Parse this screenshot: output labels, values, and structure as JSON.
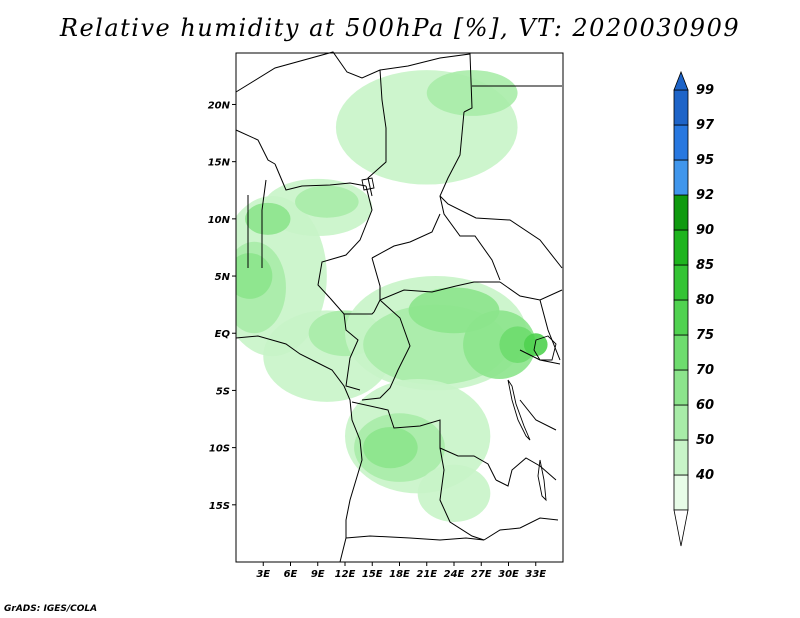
{
  "title": "Relative humidity at 500hPa [%], VT: 2020030909",
  "credit": "GrADS: IGES/COLA",
  "map": {
    "lon_range": [
      0,
      36
    ],
    "lat_range": [
      -20,
      24.5
    ],
    "lon_ticks": [
      {
        "lon": 3,
        "label": "3E"
      },
      {
        "lon": 6,
        "label": "6E"
      },
      {
        "lon": 9,
        "label": "9E"
      },
      {
        "lon": 12,
        "label": "12E"
      },
      {
        "lon": 15,
        "label": "15E"
      },
      {
        "lon": 18,
        "label": "18E"
      },
      {
        "lon": 21,
        "label": "21E"
      },
      {
        "lon": 24,
        "label": "24E"
      },
      {
        "lon": 27,
        "label": "27E"
      },
      {
        "lon": 30,
        "label": "30E"
      },
      {
        "lon": 33,
        "label": "33E"
      }
    ],
    "lat_ticks": [
      {
        "lat": 20,
        "label": "20N"
      },
      {
        "lat": 15,
        "label": "15N"
      },
      {
        "lat": 10,
        "label": "10N"
      },
      {
        "lat": 5,
        "label": "5N"
      },
      {
        "lat": 0,
        "label": "EQ"
      },
      {
        "lat": -5,
        "label": "5S"
      },
      {
        "lat": -10,
        "label": "10S"
      },
      {
        "lat": -15,
        "label": "15S"
      }
    ],
    "land_color": "#ffffff",
    "border_color": "#000000"
  },
  "colorbar": {
    "levels": [
      {
        "label": "40",
        "color": "#e8fce8"
      },
      {
        "label": "50",
        "color": "#c8f4c8"
      },
      {
        "label": "60",
        "color": "#a8eca8"
      },
      {
        "label": "70",
        "color": "#8ce48c"
      },
      {
        "label": "75",
        "color": "#6edc6e"
      },
      {
        "label": "80",
        "color": "#50d250"
      },
      {
        "label": "85",
        "color": "#34c434"
      },
      {
        "label": "90",
        "color": "#1eb41e"
      },
      {
        "label": "92",
        "color": "#0f9a0f"
      },
      {
        "label": "95",
        "color": "#4096ec"
      },
      {
        "label": "97",
        "color": "#2878e0"
      },
      {
        "label": "99",
        "color": "#1e64c8"
      }
    ],
    "low_end_color": "#ffffff",
    "high_end_color": "#1e64c8"
  },
  "humidity_fields": [
    {
      "level": 50,
      "center": [
        4,
        5
      ],
      "radii": [
        6,
        7
      ]
    },
    {
      "level": 60,
      "center": [
        2,
        4
      ],
      "radii": [
        3.5,
        4
      ]
    },
    {
      "level": 70,
      "center": [
        1.5,
        5
      ],
      "radii": [
        2.5,
        2
      ]
    },
    {
      "level": 50,
      "center": [
        9,
        11
      ],
      "radii": [
        6,
        2.5
      ]
    },
    {
      "level": 60,
      "center": [
        10,
        11.5
      ],
      "radii": [
        3.5,
        1.4
      ]
    },
    {
      "level": 70,
      "center": [
        3.5,
        10
      ],
      "radii": [
        2.5,
        1.4
      ]
    },
    {
      "level": 50,
      "center": [
        21,
        18
      ],
      "radii": [
        10,
        5
      ]
    },
    {
      "level": 60,
      "center": [
        26,
        21
      ],
      "radii": [
        5,
        2
      ]
    },
    {
      "level": 50,
      "center": [
        10,
        -2
      ],
      "radii": [
        7,
        4
      ]
    },
    {
      "level": 60,
      "center": [
        12,
        0
      ],
      "radii": [
        4,
        2
      ]
    },
    {
      "level": 50,
      "center": [
        22,
        0
      ],
      "radii": [
        10,
        5
      ]
    },
    {
      "level": 60,
      "center": [
        22,
        -1
      ],
      "radii": [
        8,
        3.5
      ]
    },
    {
      "level": 70,
      "center": [
        24,
        2
      ],
      "radii": [
        5,
        2
      ]
    },
    {
      "level": 70,
      "center": [
        29,
        -1
      ],
      "radii": [
        4,
        3
      ]
    },
    {
      "level": 75,
      "center": [
        31,
        -1
      ],
      "radii": [
        2,
        1.6
      ]
    },
    {
      "level": 80,
      "center": [
        33,
        -1
      ],
      "radii": [
        1.3,
        1
      ]
    },
    {
      "level": 50,
      "center": [
        20,
        -9
      ],
      "radii": [
        8,
        5
      ]
    },
    {
      "level": 60,
      "center": [
        18,
        -10
      ],
      "radii": [
        5,
        3
      ]
    },
    {
      "level": 70,
      "center": [
        17,
        -10
      ],
      "radii": [
        3,
        1.8
      ]
    },
    {
      "level": 50,
      "center": [
        24,
        -14
      ],
      "radii": [
        4,
        2.5
      ]
    }
  ]
}
